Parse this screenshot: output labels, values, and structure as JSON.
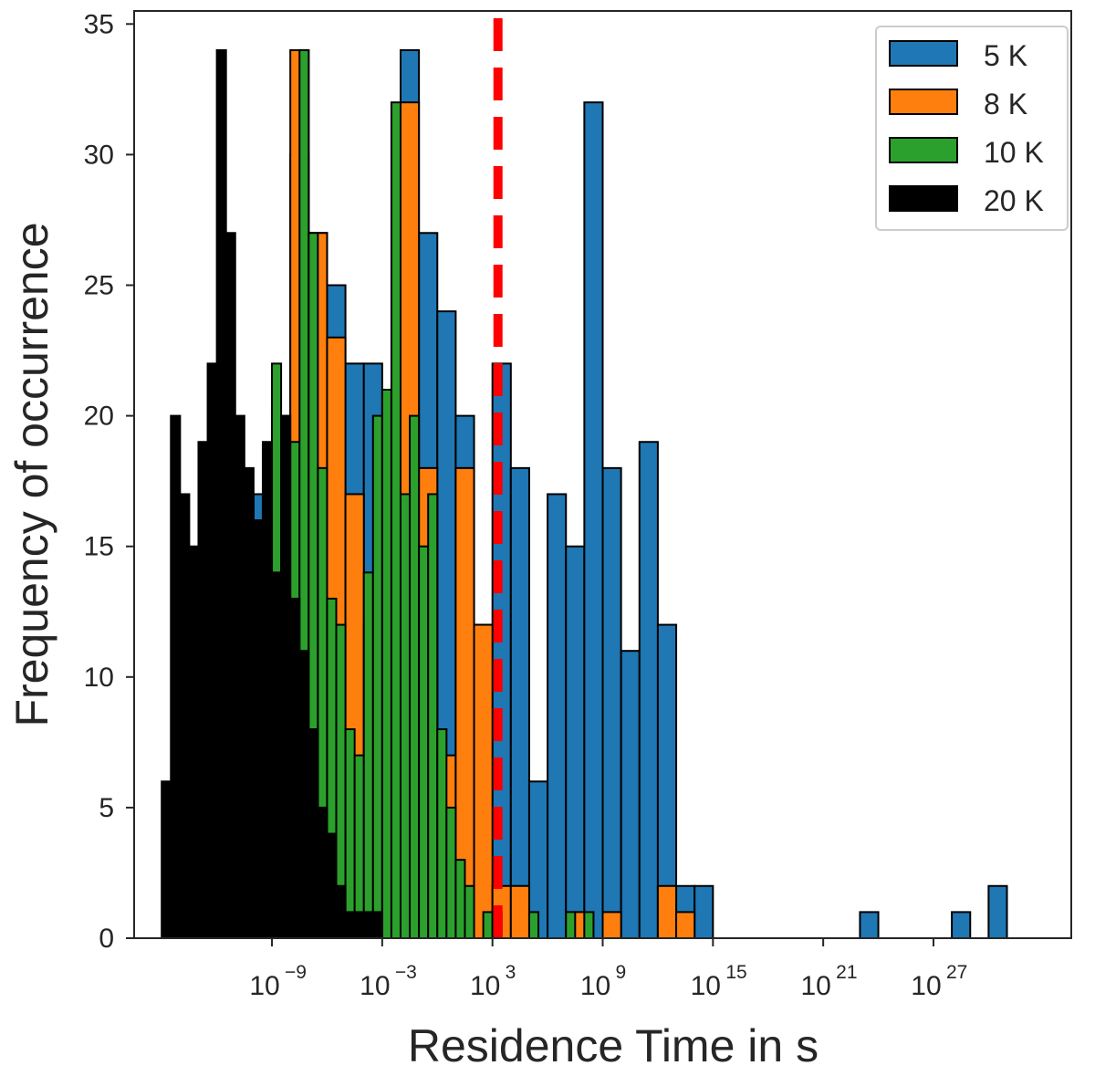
{
  "chart_data": {
    "type": "bar",
    "xscale": "log",
    "xlabel": "Residence Time in s",
    "ylabel": "Frequency of occurrence",
    "xlim_log10": [
      -16.5,
      34.5
    ],
    "ylim": [
      0,
      35.5
    ],
    "bin_width_log10": 1,
    "x_ticks": [
      {
        "base": "10",
        "exp": "−9",
        "log10": -9
      },
      {
        "base": "10",
        "exp": "−3",
        "log10": -3
      },
      {
        "base": "10",
        "exp": "3",
        "log10": 3
      },
      {
        "base": "10",
        "exp": "9",
        "log10": 9
      },
      {
        "base": "10",
        "exp": "15",
        "log10": 15
      },
      {
        "base": "10",
        "exp": "21",
        "log10": 21
      },
      {
        "base": "10",
        "exp": "27",
        "log10": 27
      }
    ],
    "y_ticks": [
      0,
      5,
      10,
      15,
      20,
      25,
      30,
      35
    ],
    "grid": false,
    "legend_position": "top-right",
    "reference_line": {
      "x_log10": 3.3,
      "color": "#ff0000",
      "style": "dashed"
    },
    "series": [
      {
        "name": "5 K",
        "color": "#1f77b4",
        "bin_starts_log10": [
          -10,
          -9,
          -8,
          -7,
          -6,
          -5,
          -4,
          -3,
          -2,
          -1,
          0,
          1,
          2,
          3,
          4,
          5,
          6,
          7,
          8,
          9,
          10,
          11,
          12,
          13,
          14,
          23,
          28,
          30
        ],
        "values": [
          17,
          20,
          30,
          27,
          25,
          22,
          22,
          15,
          34,
          27,
          24,
          20,
          12,
          22,
          18,
          6,
          17,
          15,
          32,
          18,
          11,
          19,
          12,
          2,
          2,
          1,
          1,
          2
        ]
      },
      {
        "name": "8 K",
        "color": "#ff7f0e",
        "bin_starts_log10": [
          -8,
          -7,
          -6,
          -5,
          -4,
          -3,
          -2,
          -1,
          0,
          1,
          2,
          3,
          4,
          7,
          9,
          12,
          13
        ],
        "values": [
          34,
          27,
          23,
          17,
          12,
          9,
          32,
          18,
          7,
          18,
          12,
          2,
          2,
          1,
          1,
          2,
          1
        ]
      },
      {
        "name": "10 K",
        "color": "#2ca02c",
        "bin_starts_log10": [
          -9.5,
          -9,
          -8.5,
          -8,
          -7.5,
          -7,
          -6.5,
          -6,
          -5.5,
          -5,
          -4.5,
          -4,
          -3.5,
          -3,
          -2.5,
          -2,
          -1.5,
          -1,
          -0.5,
          0,
          0.5,
          1,
          1.5,
          2.5,
          3,
          5,
          7,
          8
        ],
        "values": [
          17,
          22,
          18,
          19,
          34,
          27,
          18,
          13,
          12,
          8,
          7,
          14,
          20,
          21,
          32,
          17,
          20,
          15,
          17,
          8,
          5,
          3,
          2,
          1,
          1,
          1,
          1,
          1
        ]
      },
      {
        "name": "20 K",
        "color": "#000000",
        "bin_starts_log10": [
          -15,
          -14.5,
          -14,
          -13.5,
          -13,
          -12.5,
          -12,
          -11.5,
          -11,
          -10.5,
          -10,
          -9.5,
          -9,
          -8.5,
          -8,
          -7.5,
          -7,
          -6.5,
          -6,
          -5.5,
          -5,
          -4.5,
          -4,
          -3.5
        ],
        "values": [
          6,
          20,
          17,
          15,
          19,
          22,
          34,
          27,
          20,
          18,
          16,
          19,
          14,
          20,
          13,
          11,
          8,
          5,
          4,
          2,
          1,
          1,
          1,
          1
        ]
      }
    ]
  }
}
